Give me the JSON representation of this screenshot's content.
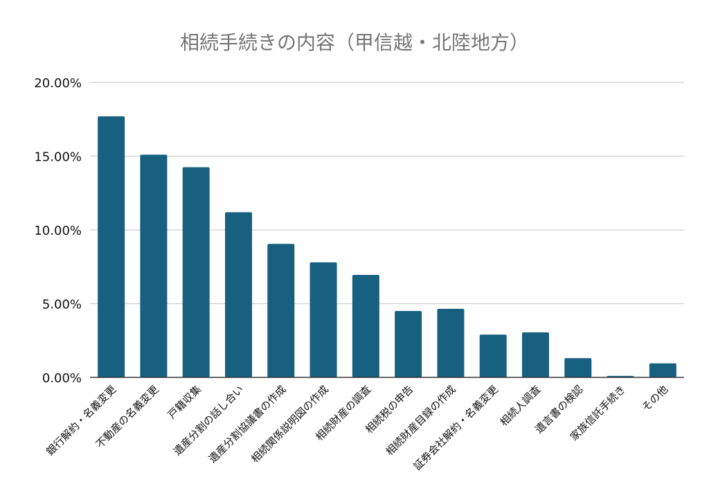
{
  "chart_data": {
    "type": "bar",
    "title": "相続手続きの内容（甲信越・北陸地方）",
    "xlabel": "",
    "ylabel": "",
    "ylim": [
      0,
      20
    ],
    "yticks": [
      "0.00%",
      "5.00%",
      "10.00%",
      "15.00%",
      "20.00%"
    ],
    "grid": true,
    "bar_color": "#17607f",
    "categories": [
      "銀行解約・名義変更",
      "不動産の名義変更",
      "戸籍収集",
      "遺産分割の話し合い",
      "遺産分割協議書の作成",
      "相続関係説明図の作成",
      "相続財産の調査",
      "相続税の申告",
      "相続財産目録の作成",
      "証券会社解約・名義変更",
      "相続人調査",
      "遺言書の検認",
      "家族信託手続き",
      "その他"
    ],
    "values": [
      17.7,
      15.1,
      14.25,
      11.2,
      9.05,
      7.8,
      6.95,
      4.5,
      4.65,
      2.9,
      3.05,
      1.3,
      0.1,
      0.95
    ]
  }
}
